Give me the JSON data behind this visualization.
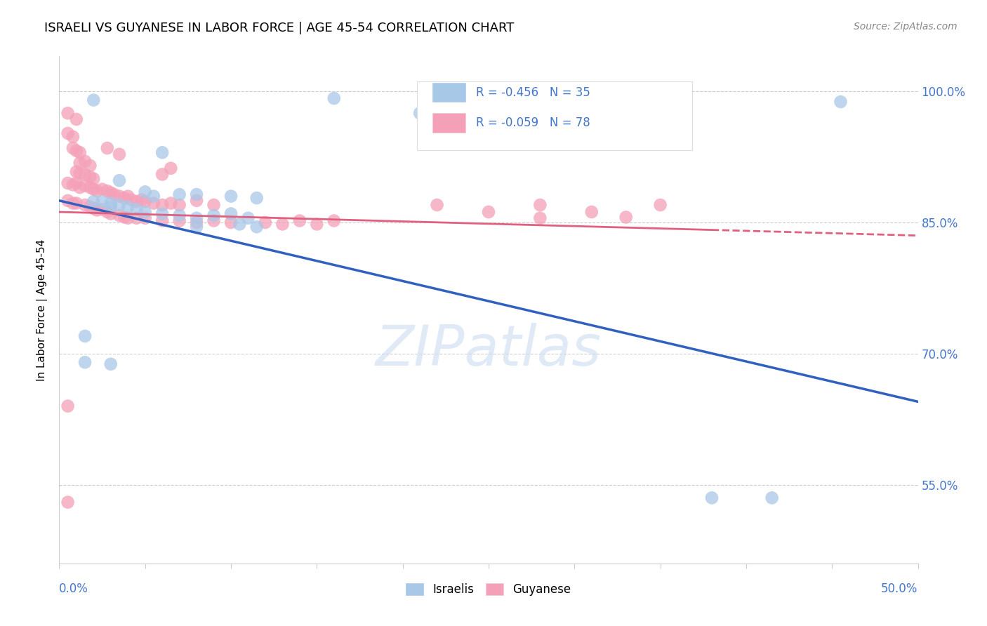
{
  "title": "ISRAELI VS GUYANESE IN LABOR FORCE | AGE 45-54 CORRELATION CHART",
  "source": "Source: ZipAtlas.com",
  "ylabel": "In Labor Force | Age 45-54",
  "ytick_labels": [
    "100.0%",
    "85.0%",
    "70.0%",
    "55.0%"
  ],
  "ytick_values": [
    1.0,
    0.85,
    0.7,
    0.55
  ],
  "xlim": [
    0.0,
    0.5
  ],
  "ylim": [
    0.46,
    1.04
  ],
  "legend_israeli": "R = -0.456   N = 35",
  "legend_guyanese": "R = -0.059   N = 78",
  "legend_bottom_israelis": "Israelis",
  "legend_bottom_guyanese": "Guyanese",
  "israeli_color": "#a8c8e8",
  "guyanese_color": "#f4a0b8",
  "israeli_line_color": "#3060c0",
  "guyanese_line_color": "#e06080",
  "watermark": "ZIPatlas",
  "israeli_line": {
    "x0": 0.0,
    "y0": 0.875,
    "x1": 0.5,
    "y1": 0.645
  },
  "guyanese_line": {
    "x0": 0.0,
    "y0": 0.862,
    "x1": 0.5,
    "y1": 0.835
  },
  "israeli_points": [
    [
      0.02,
      0.99
    ],
    [
      0.16,
      0.992
    ],
    [
      0.275,
      0.99
    ],
    [
      0.21,
      0.975
    ],
    [
      0.455,
      0.988
    ],
    [
      0.06,
      0.93
    ],
    [
      0.035,
      0.898
    ],
    [
      0.05,
      0.885
    ],
    [
      0.055,
      0.88
    ],
    [
      0.07,
      0.882
    ],
    [
      0.08,
      0.882
    ],
    [
      0.1,
      0.88
    ],
    [
      0.115,
      0.878
    ],
    [
      0.02,
      0.874
    ],
    [
      0.025,
      0.874
    ],
    [
      0.03,
      0.872
    ],
    [
      0.03,
      0.868
    ],
    [
      0.035,
      0.87
    ],
    [
      0.04,
      0.868
    ],
    [
      0.045,
      0.865
    ],
    [
      0.05,
      0.862
    ],
    [
      0.06,
      0.86
    ],
    [
      0.07,
      0.858
    ],
    [
      0.08,
      0.855
    ],
    [
      0.09,
      0.858
    ],
    [
      0.1,
      0.86
    ],
    [
      0.11,
      0.855
    ],
    [
      0.08,
      0.845
    ],
    [
      0.105,
      0.848
    ],
    [
      0.115,
      0.845
    ],
    [
      0.015,
      0.72
    ],
    [
      0.015,
      0.69
    ],
    [
      0.03,
      0.688
    ],
    [
      0.38,
      0.535
    ],
    [
      0.415,
      0.535
    ]
  ],
  "guyanese_points": [
    [
      0.005,
      0.975
    ],
    [
      0.01,
      0.968
    ],
    [
      0.005,
      0.952
    ],
    [
      0.008,
      0.948
    ],
    [
      0.008,
      0.935
    ],
    [
      0.01,
      0.932
    ],
    [
      0.012,
      0.93
    ],
    [
      0.012,
      0.918
    ],
    [
      0.015,
      0.92
    ],
    [
      0.018,
      0.915
    ],
    [
      0.01,
      0.908
    ],
    [
      0.012,
      0.906
    ],
    [
      0.015,
      0.905
    ],
    [
      0.018,
      0.902
    ],
    [
      0.02,
      0.9
    ],
    [
      0.028,
      0.935
    ],
    [
      0.035,
      0.928
    ],
    [
      0.06,
      0.905
    ],
    [
      0.065,
      0.912
    ],
    [
      0.005,
      0.895
    ],
    [
      0.008,
      0.893
    ],
    [
      0.01,
      0.895
    ],
    [
      0.012,
      0.89
    ],
    [
      0.015,
      0.892
    ],
    [
      0.018,
      0.89
    ],
    [
      0.02,
      0.888
    ],
    [
      0.022,
      0.886
    ],
    [
      0.025,
      0.888
    ],
    [
      0.028,
      0.886
    ],
    [
      0.03,
      0.884
    ],
    [
      0.032,
      0.882
    ],
    [
      0.035,
      0.88
    ],
    [
      0.038,
      0.878
    ],
    [
      0.04,
      0.88
    ],
    [
      0.042,
      0.876
    ],
    [
      0.045,
      0.874
    ],
    [
      0.048,
      0.876
    ],
    [
      0.05,
      0.874
    ],
    [
      0.055,
      0.872
    ],
    [
      0.06,
      0.87
    ],
    [
      0.065,
      0.872
    ],
    [
      0.07,
      0.87
    ],
    [
      0.08,
      0.875
    ],
    [
      0.09,
      0.87
    ],
    [
      0.005,
      0.875
    ],
    [
      0.008,
      0.872
    ],
    [
      0.01,
      0.872
    ],
    [
      0.015,
      0.87
    ],
    [
      0.018,
      0.868
    ],
    [
      0.02,
      0.866
    ],
    [
      0.022,
      0.864
    ],
    [
      0.025,
      0.865
    ],
    [
      0.028,
      0.862
    ],
    [
      0.03,
      0.86
    ],
    [
      0.035,
      0.858
    ],
    [
      0.038,
      0.856
    ],
    [
      0.04,
      0.855
    ],
    [
      0.045,
      0.855
    ],
    [
      0.05,
      0.855
    ],
    [
      0.06,
      0.852
    ],
    [
      0.07,
      0.852
    ],
    [
      0.08,
      0.85
    ],
    [
      0.09,
      0.852
    ],
    [
      0.1,
      0.85
    ],
    [
      0.12,
      0.85
    ],
    [
      0.13,
      0.848
    ],
    [
      0.14,
      0.852
    ],
    [
      0.15,
      0.848
    ],
    [
      0.16,
      0.852
    ],
    [
      0.22,
      0.87
    ],
    [
      0.25,
      0.862
    ],
    [
      0.28,
      0.87
    ],
    [
      0.31,
      0.862
    ],
    [
      0.33,
      0.856
    ],
    [
      0.28,
      0.855
    ],
    [
      0.35,
      0.87
    ],
    [
      0.005,
      0.64
    ],
    [
      0.005,
      0.53
    ]
  ]
}
